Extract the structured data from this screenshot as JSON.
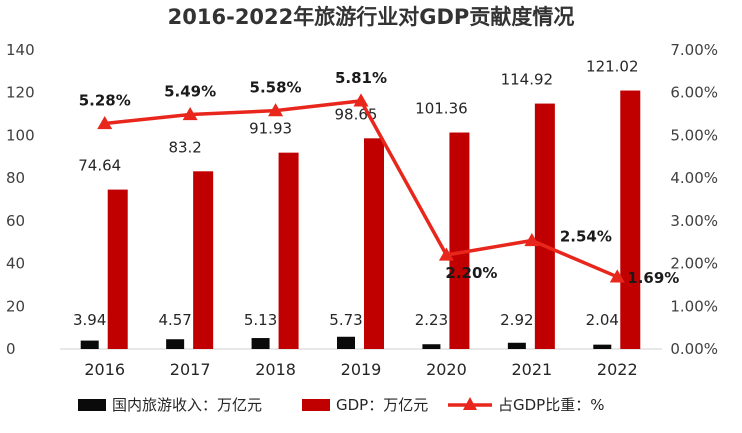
{
  "chart_data": {
    "type": "bar",
    "title": "2016-2022年旅游行业对GDP贡献度情况",
    "categories": [
      "2016",
      "2017",
      "2018",
      "2019",
      "2020",
      "2021",
      "2022"
    ],
    "series": [
      {
        "name": "国内旅游收入：万亿元",
        "type": "bar",
        "axis": "left",
        "color": "#0a0a0a",
        "values": [
          3.94,
          4.57,
          5.13,
          5.73,
          2.23,
          2.92,
          2.04
        ],
        "labels": [
          "3.94",
          "4.57",
          "5.13",
          "5.73",
          "2.23",
          "2.92",
          "2.04"
        ]
      },
      {
        "name": "GDP：万亿元",
        "type": "bar",
        "axis": "left",
        "color": "#c00000",
        "values": [
          74.64,
          83.2,
          91.93,
          98.65,
          101.36,
          114.92,
          121.02
        ],
        "labels": [
          "74.64",
          "83.2",
          "91.93",
          "98.65",
          "101.36",
          "114.92",
          "121.02"
        ]
      },
      {
        "name": "占GDP比重：%",
        "type": "line",
        "axis": "right",
        "color": "#e8261c",
        "values": [
          5.28,
          5.49,
          5.58,
          5.81,
          2.2,
          2.54,
          1.69
        ],
        "labels": [
          "5.28%",
          "5.49%",
          "5.58%",
          "5.81%",
          "2.20%",
          "2.54%",
          "1.69%"
        ]
      }
    ],
    "y_left": {
      "min": 0,
      "max": 140,
      "ticks": [
        "0",
        "20",
        "40",
        "60",
        "80",
        "100",
        "120",
        "140"
      ]
    },
    "y_right": {
      "min": 0,
      "max": 7,
      "ticks": [
        "0.00%",
        "1.00%",
        "2.00%",
        "3.00%",
        "4.00%",
        "5.00%",
        "6.00%",
        "7.00%"
      ]
    },
    "grid": false,
    "legend_position": "bottom"
  }
}
